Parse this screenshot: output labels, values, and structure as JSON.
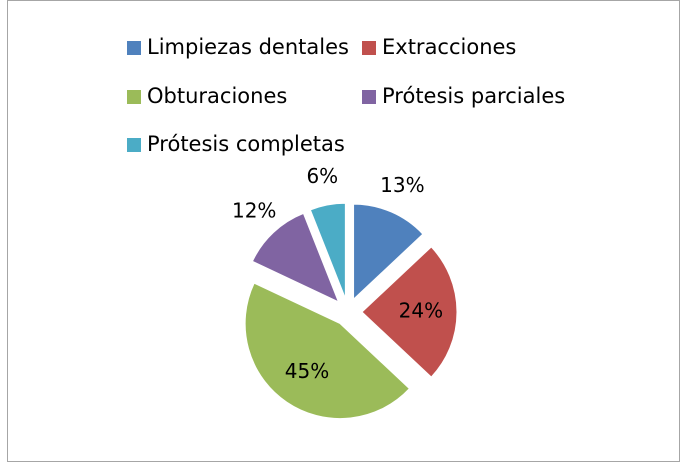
{
  "chart_data": {
    "type": "pie",
    "categories": [
      "Limpiezas dentales",
      "Extracciones",
      "Obturaciones",
      "Prótesis parciales",
      "Prótesis completas"
    ],
    "values": [
      13,
      24,
      45,
      12,
      6
    ],
    "value_labels": [
      "13%",
      "24%",
      "45%",
      "12%",
      "6%"
    ],
    "colors": [
      "#4f81bd",
      "#c0504d",
      "#9bbb59",
      "#8064a2",
      "#4bacc6"
    ],
    "exploded": true,
    "legend": "top"
  }
}
